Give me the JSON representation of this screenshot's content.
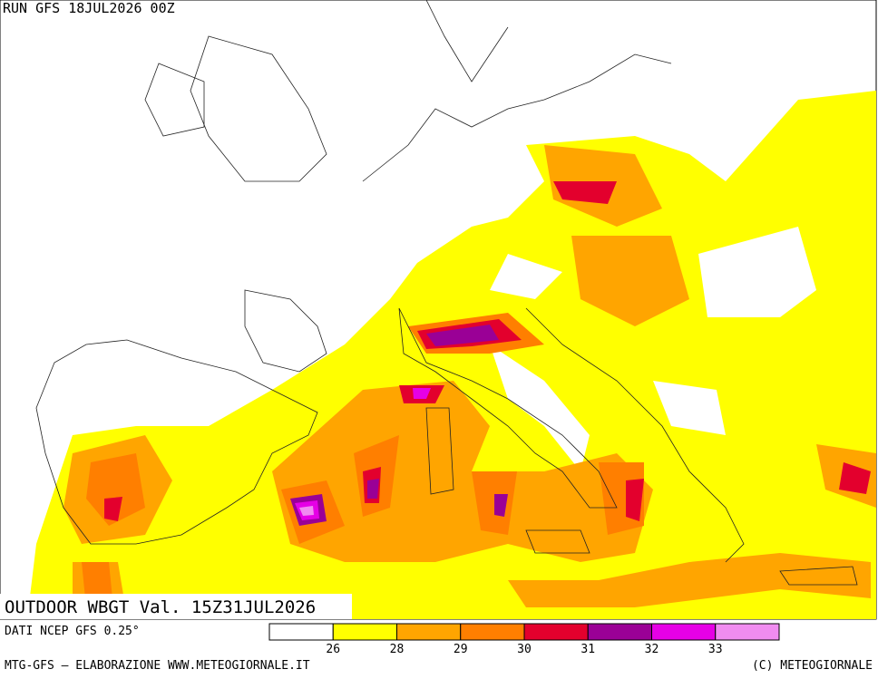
{
  "header": {
    "run": "RUN GFS 18JUL2026 00Z"
  },
  "map": {
    "title": "OUTDOOR WBGT Val. 15Z31JUL2026"
  },
  "legend": {
    "source": "DATI NCEP GFS 0.25°",
    "colors": [
      "#ffffff",
      "#ffff00",
      "#ffa500",
      "#ff7f00",
      "#e3002d",
      "#9a0096",
      "#e600e6",
      "#f08cf0"
    ],
    "ticks": [
      26,
      28,
      29,
      30,
      31,
      32,
      33
    ]
  },
  "footer": {
    "left": "MTG-GFS — ELABORAZIONE WWW.METEOGIORNALE.IT",
    "right": "(C) METEOGIORNALE"
  }
}
